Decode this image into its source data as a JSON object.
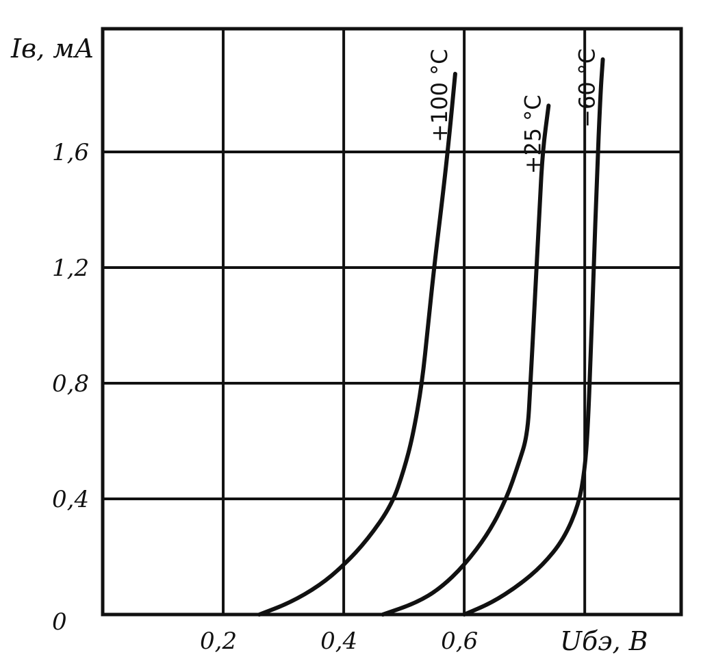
{
  "chart_data": {
    "type": "line",
    "xlabel": "Uбэ, В",
    "ylabel": "Iв, мА",
    "xlim": [
      0,
      0.96
    ],
    "ylim": [
      0,
      2.0
    ],
    "x_tick_labels": [
      "0,2",
      "0,4",
      "0,6"
    ],
    "y_tick_labels": [
      "0",
      "0,4",
      "0,8",
      "1,2",
      "1,6"
    ],
    "grid": true,
    "series": [
      {
        "name": "+100 °C",
        "points": [
          [
            0.26,
            0.0
          ],
          [
            0.31,
            0.04
          ],
          [
            0.36,
            0.1
          ],
          [
            0.4,
            0.17
          ],
          [
            0.44,
            0.26
          ],
          [
            0.48,
            0.38
          ],
          [
            0.5,
            0.5
          ],
          [
            0.515,
            0.62
          ],
          [
            0.53,
            0.8
          ],
          [
            0.54,
            1.0
          ],
          [
            0.55,
            1.2
          ],
          [
            0.565,
            1.46
          ],
          [
            0.575,
            1.65
          ],
          [
            0.585,
            1.87
          ]
        ]
      },
      {
        "name": "+25 °C",
        "points": [
          [
            0.465,
            0.0
          ],
          [
            0.52,
            0.04
          ],
          [
            0.56,
            0.09
          ],
          [
            0.6,
            0.17
          ],
          [
            0.64,
            0.28
          ],
          [
            0.67,
            0.4
          ],
          [
            0.69,
            0.52
          ],
          [
            0.705,
            0.62
          ],
          [
            0.71,
            0.8
          ],
          [
            0.715,
            1.0
          ],
          [
            0.72,
            1.2
          ],
          [
            0.725,
            1.4
          ],
          [
            0.73,
            1.6
          ],
          [
            0.74,
            1.76
          ]
        ]
      },
      {
        "name": "−60 °C",
        "points": [
          [
            0.6,
            0.0
          ],
          [
            0.645,
            0.04
          ],
          [
            0.69,
            0.1
          ],
          [
            0.73,
            0.17
          ],
          [
            0.765,
            0.26
          ],
          [
            0.79,
            0.38
          ],
          [
            0.8,
            0.5
          ],
          [
            0.805,
            0.64
          ],
          [
            0.81,
            0.9
          ],
          [
            0.815,
            1.2
          ],
          [
            0.82,
            1.5
          ],
          [
            0.826,
            1.8
          ],
          [
            0.83,
            1.92
          ]
        ]
      }
    ]
  }
}
